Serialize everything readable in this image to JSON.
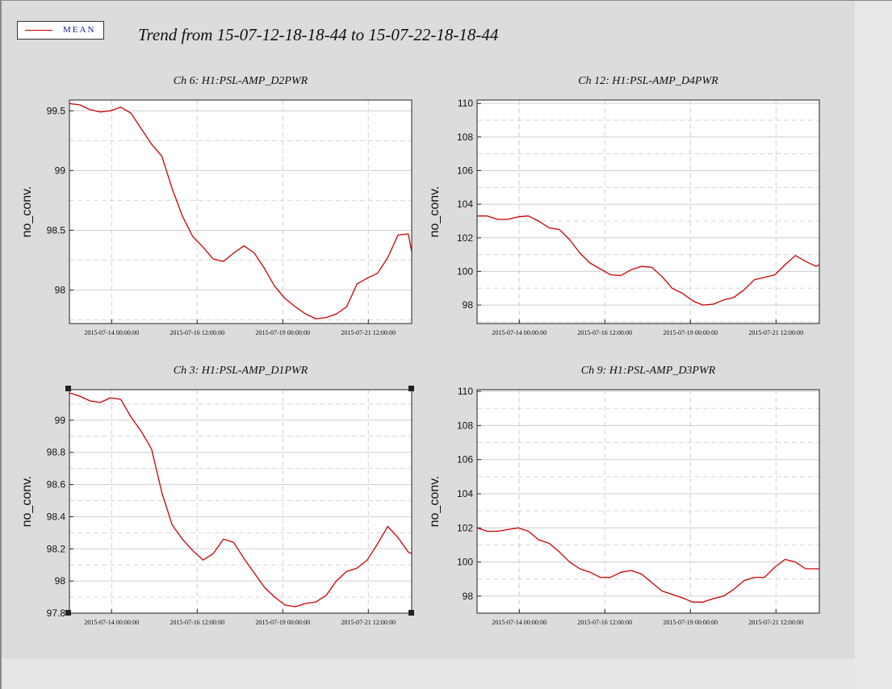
{
  "legend": {
    "label": "MEAN",
    "color": "#cc0000"
  },
  "main_title": "Trend from 15-07-12-18-18-44 to 15-07-22-18-18-44",
  "chart_data": [
    {
      "type": "line",
      "title": "Ch 6: H1:PSL-AMP_D2PWR",
      "ylabel": "no_conv.",
      "xlabel": "",
      "x_tick_labels": [
        "2015-07-14 00:00:00",
        "2015-07-16 12:00:00",
        "2015-07-19 00:00:00",
        "2015-07-21 12:00:00"
      ],
      "x_ticks_days": [
        1.233,
        3.733,
        6.233,
        8.733
      ],
      "y_tick_labels": [
        "99.5",
        "99",
        "98.5",
        "98"
      ],
      "y_ticks": [
        99.5,
        99,
        98.5,
        98
      ],
      "ylim": [
        97.72,
        99.59
      ],
      "grid": true,
      "series": [
        {
          "name": "MEAN",
          "color": "#cc0000",
          "x": [
            0,
            0.3,
            0.6,
            0.9,
            1.2,
            1.5,
            1.8,
            2.1,
            2.4,
            2.7,
            3.0,
            3.3,
            3.6,
            3.9,
            4.2,
            4.5,
            4.8,
            5.1,
            5.4,
            5.7,
            6.0,
            6.3,
            6.6,
            6.9,
            7.2,
            7.5,
            7.8,
            8.1,
            8.4,
            8.7,
            9.0,
            9.3,
            9.6,
            9.9,
            10.0
          ],
          "y": [
            99.56,
            99.55,
            99.51,
            99.49,
            99.5,
            99.53,
            99.48,
            99.35,
            99.22,
            99.12,
            98.85,
            98.62,
            98.45,
            98.36,
            98.26,
            98.24,
            98.31,
            98.37,
            98.31,
            98.18,
            98.03,
            97.93,
            97.86,
            97.8,
            97.76,
            97.77,
            97.8,
            97.86,
            98.05,
            98.1,
            98.14,
            98.27,
            98.46,
            98.47,
            98.32
          ]
        }
      ]
    },
    {
      "type": "line",
      "title": "Ch 12: H1:PSL-AMP_D4PWR",
      "ylabel": "no_conv.",
      "xlabel": "",
      "x_tick_labels": [
        "2015-07-14 00:00:00",
        "2015-07-16 12:00:00",
        "2015-07-19 00:00:00",
        "2015-07-21 12:00:00"
      ],
      "x_ticks_days": [
        1.233,
        3.733,
        6.233,
        8.733
      ],
      "y_tick_labels": [
        "110",
        "108",
        "106",
        "104",
        "102",
        "100",
        "98"
      ],
      "y_ticks": [
        110,
        108,
        106,
        104,
        102,
        100,
        98
      ],
      "ylim": [
        96.9,
        110.2
      ],
      "grid": true,
      "series": [
        {
          "name": "MEAN",
          "color": "#cc0000",
          "x": [
            0,
            0.3,
            0.6,
            0.9,
            1.2,
            1.5,
            1.8,
            2.1,
            2.4,
            2.7,
            3.0,
            3.3,
            3.6,
            3.9,
            4.2,
            4.5,
            4.8,
            5.1,
            5.4,
            5.7,
            6.0,
            6.3,
            6.6,
            6.9,
            7.2,
            7.5,
            7.8,
            8.1,
            8.4,
            8.7,
            9.0,
            9.3,
            9.6,
            9.9,
            10.0
          ],
          "y": [
            103.3,
            103.3,
            103.1,
            103.1,
            103.25,
            103.3,
            103.0,
            102.6,
            102.5,
            101.9,
            101.1,
            100.5,
            100.15,
            99.8,
            99.75,
            100.1,
            100.3,
            100.25,
            99.7,
            99.0,
            98.7,
            98.25,
            98.0,
            98.05,
            98.3,
            98.45,
            98.9,
            99.5,
            99.65,
            99.8,
            100.4,
            100.95,
            100.6,
            100.3,
            100.4
          ]
        }
      ]
    },
    {
      "type": "line",
      "title": "Ch 3: H1:PSL-AMP_D1PWR",
      "ylabel": "no_conv.",
      "xlabel": "",
      "x_tick_labels": [
        "2015-07-14 00:00:00",
        "2015-07-16 12:00:00",
        "2015-07-19 00:00:00",
        "2015-07-21 12:00:00"
      ],
      "x_ticks_days": [
        1.233,
        3.733,
        6.233,
        8.733
      ],
      "y_tick_labels": [
        "99",
        "98.8",
        "98.6",
        "98.4",
        "98.2",
        "98",
        "97.8"
      ],
      "y_ticks": [
        99,
        98.8,
        98.6,
        98.4,
        98.2,
        98,
        97.8
      ],
      "ylim": [
        97.8,
        99.19
      ],
      "grid": true,
      "series": [
        {
          "name": "MEAN",
          "color": "#cc0000",
          "x": [
            0,
            0.3,
            0.6,
            0.9,
            1.2,
            1.5,
            1.8,
            2.1,
            2.4,
            2.7,
            3.0,
            3.3,
            3.6,
            3.9,
            4.2,
            4.5,
            4.8,
            5.1,
            5.4,
            5.7,
            6.0,
            6.3,
            6.6,
            6.9,
            7.2,
            7.5,
            7.8,
            8.1,
            8.4,
            8.7,
            9.0,
            9.3,
            9.6,
            9.9,
            10.0
          ],
          "y": [
            99.17,
            99.15,
            99.12,
            99.11,
            99.14,
            99.13,
            99.02,
            98.93,
            98.82,
            98.55,
            98.35,
            98.26,
            98.19,
            98.13,
            98.17,
            98.26,
            98.24,
            98.14,
            98.05,
            97.96,
            97.9,
            97.85,
            97.84,
            97.86,
            97.87,
            97.91,
            98.0,
            98.06,
            98.08,
            98.13,
            98.23,
            98.34,
            98.27,
            98.18,
            98.17
          ]
        }
      ]
    },
    {
      "type": "line",
      "title": "Ch 9: H1:PSL-AMP_D3PWR",
      "ylabel": "no_conv.",
      "xlabel": "",
      "x_tick_labels": [
        "2015-07-14 00:00:00",
        "2015-07-16 12:00:00",
        "2015-07-19 00:00:00",
        "2015-07-21 12:00:00"
      ],
      "x_ticks_days": [
        1.233,
        3.733,
        6.233,
        8.733
      ],
      "y_tick_labels": [
        "110",
        "108",
        "106",
        "104",
        "102",
        "100",
        "98"
      ],
      "y_ticks": [
        110,
        108,
        106,
        104,
        102,
        100,
        98
      ],
      "ylim": [
        97.0,
        110.1
      ],
      "grid": true,
      "series": [
        {
          "name": "MEAN",
          "color": "#cc0000",
          "x": [
            0,
            0.3,
            0.6,
            0.9,
            1.2,
            1.5,
            1.8,
            2.1,
            2.4,
            2.7,
            3.0,
            3.3,
            3.6,
            3.9,
            4.2,
            4.5,
            4.8,
            5.1,
            5.4,
            5.7,
            6.0,
            6.3,
            6.6,
            6.9,
            7.2,
            7.5,
            7.8,
            8.1,
            8.4,
            8.7,
            9.0,
            9.3,
            9.6,
            9.9,
            10.0
          ],
          "y": [
            102.0,
            101.8,
            101.8,
            101.9,
            102.0,
            101.8,
            101.3,
            101.1,
            100.6,
            100.0,
            99.6,
            99.4,
            99.1,
            99.1,
            99.4,
            99.5,
            99.3,
            98.8,
            98.3,
            98.1,
            97.9,
            97.65,
            97.65,
            97.85,
            98.0,
            98.4,
            98.9,
            99.1,
            99.1,
            99.7,
            100.15,
            100.0,
            99.6,
            99.6,
            99.6
          ]
        }
      ]
    }
  ]
}
